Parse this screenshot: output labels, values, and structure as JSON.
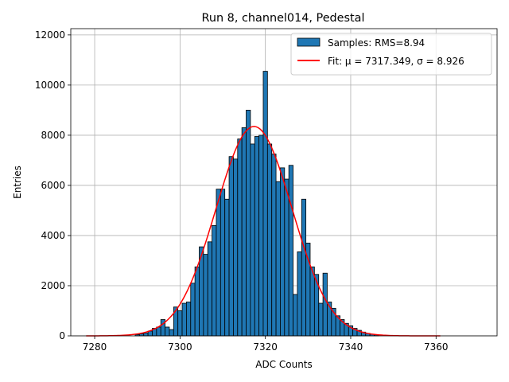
{
  "chart_data": {
    "type": "bar",
    "title": "Run 8, channel014, Pedestal",
    "xlabel": "ADC Counts",
    "ylabel": "Entries",
    "xlim": [
      7274.4,
      7374.3
    ],
    "ylim": [
      0,
      12250
    ],
    "xticks": [
      7280,
      7300,
      7320,
      7340,
      7360
    ],
    "yticks": [
      0,
      2000,
      4000,
      6000,
      8000,
      10000,
      12000
    ],
    "grid": true,
    "legend_position": "top-right",
    "legend": [
      {
        "label": "Samples: RMS=8.94",
        "kind": "patch",
        "color": "#1f77b4"
      },
      {
        "label": "Fit: μ = 7317.349, σ = 8.926",
        "kind": "line",
        "color": "#ff0000"
      }
    ],
    "histogram": {
      "name": "Samples",
      "color": "#1f77b4",
      "edge_color": "#000000",
      "bin_width": 1,
      "bins": [
        {
          "x": 7290,
          "y": 50
        },
        {
          "x": 7291,
          "y": 80
        },
        {
          "x": 7292,
          "y": 110
        },
        {
          "x": 7293,
          "y": 190
        },
        {
          "x": 7294,
          "y": 300
        },
        {
          "x": 7295,
          "y": 350
        },
        {
          "x": 7296,
          "y": 650
        },
        {
          "x": 7297,
          "y": 350
        },
        {
          "x": 7298,
          "y": 250
        },
        {
          "x": 7299,
          "y": 1150
        },
        {
          "x": 7300,
          "y": 1000
        },
        {
          "x": 7301,
          "y": 1300
        },
        {
          "x": 7302,
          "y": 1350
        },
        {
          "x": 7303,
          "y": 2100
        },
        {
          "x": 7304,
          "y": 2750
        },
        {
          "x": 7305,
          "y": 3550
        },
        {
          "x": 7306,
          "y": 3250
        },
        {
          "x": 7307,
          "y": 3750
        },
        {
          "x": 7308,
          "y": 4400
        },
        {
          "x": 7309,
          "y": 5850
        },
        {
          "x": 7310,
          "y": 5850
        },
        {
          "x": 7311,
          "y": 5450
        },
        {
          "x": 7312,
          "y": 7150
        },
        {
          "x": 7313,
          "y": 7050
        },
        {
          "x": 7314,
          "y": 7850
        },
        {
          "x": 7315,
          "y": 8300
        },
        {
          "x": 7316,
          "y": 9000
        },
        {
          "x": 7317,
          "y": 7650
        },
        {
          "x": 7318,
          "y": 7950
        },
        {
          "x": 7319,
          "y": 8000
        },
        {
          "x": 7320,
          "y": 10550
        },
        {
          "x": 7321,
          "y": 7650
        },
        {
          "x": 7322,
          "y": 7250
        },
        {
          "x": 7323,
          "y": 6150
        },
        {
          "x": 7324,
          "y": 6700
        },
        {
          "x": 7325,
          "y": 6250
        },
        {
          "x": 7326,
          "y": 6800
        },
        {
          "x": 7327,
          "y": 1650
        },
        {
          "x": 7328,
          "y": 3350
        },
        {
          "x": 7329,
          "y": 5450
        },
        {
          "x": 7330,
          "y": 3700
        },
        {
          "x": 7331,
          "y": 2750
        },
        {
          "x": 7332,
          "y": 2450
        },
        {
          "x": 7333,
          "y": 1300
        },
        {
          "x": 7334,
          "y": 2500
        },
        {
          "x": 7335,
          "y": 1350
        },
        {
          "x": 7336,
          "y": 1100
        },
        {
          "x": 7337,
          "y": 800
        },
        {
          "x": 7338,
          "y": 650
        },
        {
          "x": 7339,
          "y": 500
        },
        {
          "x": 7340,
          "y": 400
        },
        {
          "x": 7341,
          "y": 300
        },
        {
          "x": 7342,
          "y": 220
        },
        {
          "x": 7343,
          "y": 150
        },
        {
          "x": 7344,
          "y": 100
        },
        {
          "x": 7345,
          "y": 60
        },
        {
          "x": 7346,
          "y": 40
        }
      ]
    },
    "fit": {
      "name": "Fit",
      "color": "#ff0000",
      "function": "gaussian",
      "mu": 7317.349,
      "sigma": 8.926,
      "amplitude": 8350,
      "x_range": [
        7278,
        7361
      ]
    }
  }
}
